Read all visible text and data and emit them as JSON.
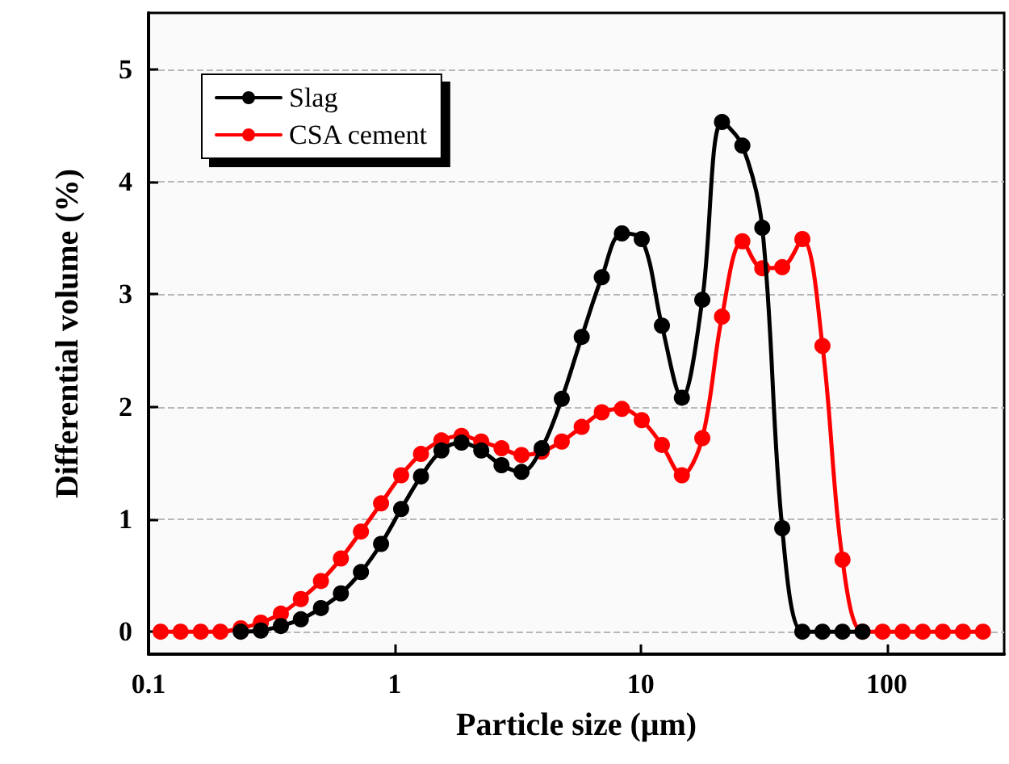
{
  "chart_data": {
    "type": "line",
    "xlabel": "Particle size (μm)",
    "ylabel": "Differential volume (%)",
    "x": [
      0.112,
      0.135,
      0.163,
      0.196,
      0.237,
      0.286,
      0.345,
      0.416,
      0.502,
      0.605,
      0.73,
      0.881,
      1.063,
      1.28,
      1.55,
      1.87,
      2.25,
      2.72,
      3.28,
      3.96,
      4.78,
      5.76,
      6.95,
      8.39,
      10.1,
      12.2,
      14.7,
      17.8,
      21.4,
      25.9,
      31.2,
      37.6,
      45.4,
      54.8,
      66.1,
      79.7,
      96.2,
      116,
      140,
      169,
      204,
      246
    ],
    "series": [
      {
        "name": "Slag",
        "color": "#000000",
        "values": [
          null,
          null,
          null,
          null,
          0,
          0.01,
          0.05,
          0.11,
          0.21,
          0.34,
          0.53,
          0.78,
          1.09,
          1.38,
          1.61,
          1.68,
          1.61,
          1.48,
          1.42,
          1.63,
          2.07,
          2.62,
          3.15,
          3.54,
          3.49,
          2.72,
          2.08,
          2.95,
          4.53,
          4.32,
          3.59,
          0.92,
          0,
          0,
          0,
          0,
          null,
          null,
          null,
          null,
          null,
          null
        ]
      },
      {
        "name": "CSA cement",
        "color": "#ff0000",
        "values": [
          0,
          0,
          0,
          0,
          0.03,
          0.08,
          0.16,
          0.29,
          0.45,
          0.65,
          0.89,
          1.14,
          1.39,
          1.58,
          1.7,
          1.74,
          1.69,
          1.63,
          1.57,
          1.6,
          1.69,
          1.82,
          1.95,
          1.98,
          1.88,
          1.66,
          1.39,
          1.72,
          2.8,
          3.47,
          3.23,
          3.24,
          3.49,
          2.54,
          0.64,
          0,
          0,
          0,
          0,
          0,
          0,
          0
        ]
      }
    ],
    "log": "x",
    "xlim": [
      0.1,
      300
    ],
    "xticks": [
      0.1,
      1,
      10,
      100
    ],
    "ylim": [
      -0.2,
      5.5
    ],
    "yticks": [
      0,
      1,
      2,
      3,
      4,
      5
    ],
    "grid": "y",
    "legend": "top left",
    "marker": "circle",
    "line_style": "solid"
  }
}
